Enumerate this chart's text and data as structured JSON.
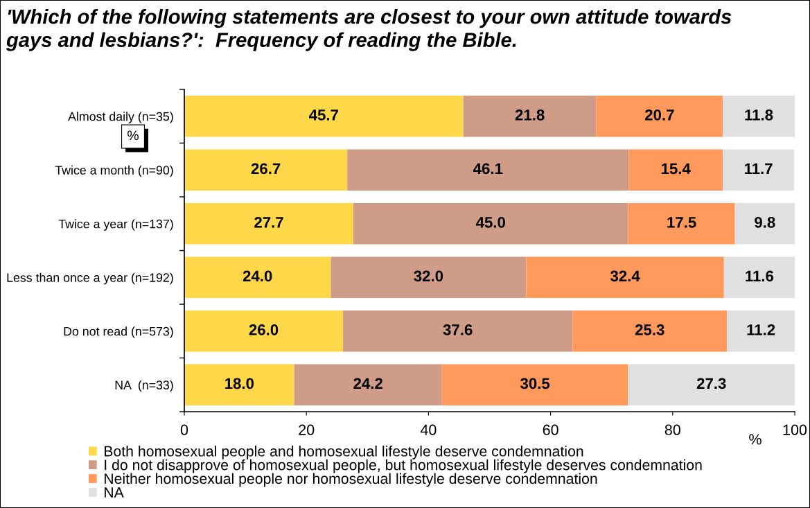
{
  "chart_data": {
    "type": "bar",
    "orientation": "horizontal",
    "stacked": true,
    "title": "'Which of the following statements are closest to your own attitude towards\ngays and lesbians?':  Frequency of reading the Bible.",
    "categories": [
      "Almost daily (n=35)",
      "Twice a month (n=90)",
      "Twice a year (n=137)",
      "Less than once a year (n=192)",
      "Do not read (n=573)",
      "NA  (n=33)"
    ],
    "series": [
      {
        "name": "Both homosexual people and homosexual lifestyle deserve condemnation",
        "color": "#ffd84a",
        "values": [
          45.7,
          26.7,
          27.7,
          24.0,
          26.0,
          18.0
        ],
        "value_labels": [
          "45.7",
          "26.7",
          "27.7",
          "24.0",
          "26.0",
          "18.0"
        ]
      },
      {
        "name": "I do not disapprove of homosexual people, but homosexual lifestyle deserves condemnation",
        "color": "#cf9c88",
        "values": [
          21.8,
          46.1,
          45.0,
          32.0,
          37.6,
          24.2
        ],
        "value_labels": [
          "21.8",
          "46.1",
          "45.0",
          "32.0",
          "37.6",
          "24.2"
        ]
      },
      {
        "name": "Neither homosexual people nor homosexual lifestyle deserve condemnation",
        "color": "#ff9a5c",
        "values": [
          20.7,
          15.4,
          17.5,
          32.4,
          25.3,
          30.5
        ],
        "value_labels": [
          "20.7",
          "15.4",
          "17.5",
          "32.4",
          "25.3",
          "30.5"
        ]
      },
      {
        "name": "NA",
        "color": "#e0e0e0",
        "values": [
          11.8,
          11.7,
          9.8,
          11.6,
          11.2,
          27.3
        ],
        "value_labels": [
          "11.8",
          "11.7",
          "9.8",
          "11.6",
          "11.2",
          "27.3"
        ]
      }
    ],
    "xlim": [
      0,
      100
    ],
    "xticks": [
      0,
      20,
      40,
      60,
      80,
      100
    ],
    "xlabel": "%",
    "legend": "bottom",
    "annotations": [
      "%"
    ]
  }
}
